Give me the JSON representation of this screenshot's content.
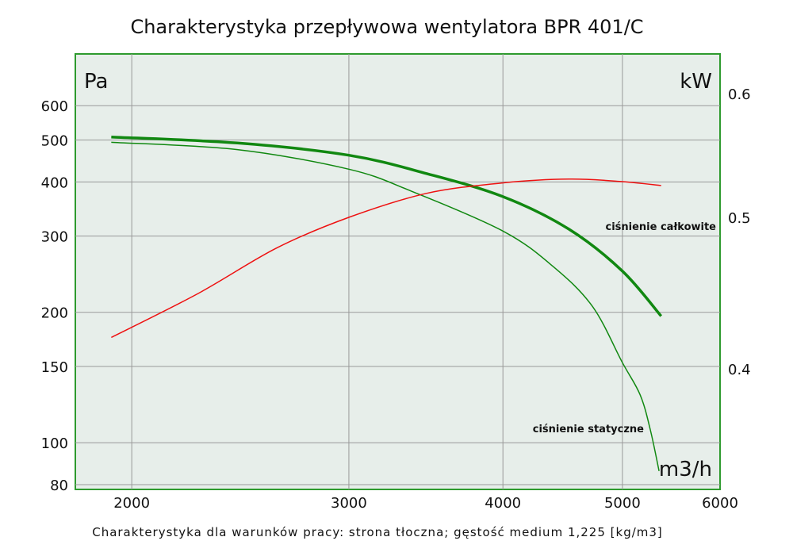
{
  "chart_data": {
    "type": "line",
    "title": "Charakterystyka przepływowa wentylatora BPR 401/C",
    "caption": "Charakterystyka dla warunków pracy: strona tłoczna; gęstość medium 1,225 [kg/m3]",
    "xlabel": "m3/h",
    "ylabel_left": "Pa",
    "ylabel_right": "kW",
    "x_scale": "log",
    "y_scale": "log",
    "y2_scale": "log",
    "xlim": [
      1800,
      6000
    ],
    "ylim": [
      78,
      790
    ],
    "y2lim": [
      0.335,
      0.636
    ],
    "x_ticks": [
      "2000",
      "3000",
      "4000",
      "5000",
      "6000"
    ],
    "y_ticks": [
      "600",
      "500",
      "400",
      "300",
      "200",
      "150",
      "100",
      "80"
    ],
    "y2_ticks": [
      "0.6",
      "0.5",
      "0.4"
    ],
    "grid": true,
    "colors": {
      "background": "#e7eeea",
      "border": "#2e9a2e",
      "grid": "#999999",
      "pressure": "#118811",
      "power": "#ee1111"
    },
    "series": [
      {
        "name": "ciśnienie całkowite",
        "axis": "left",
        "color": "#118811",
        "width": "thick",
        "x": [
          1925,
          2436,
          3000,
          3470,
          4000,
          4526,
          5000,
          5375
        ],
        "y": [
          508,
          492,
          461,
          418,
          370,
          311,
          249,
          196
        ]
      },
      {
        "name": "ciśnienie statyczne",
        "axis": "left",
        "color": "#118811",
        "width": "thin",
        "x": [
          1925,
          2436,
          3000,
          3370,
          4000,
          4394,
          4730,
          5000,
          5168,
          5268,
          5354
        ],
        "y": [
          494,
          475,
          428,
          381,
          308,
          255,
          206,
          153,
          129,
          107,
          86
        ]
      },
      {
        "axis": "right",
        "color": "#ee1111",
        "width": "thin",
        "x": [
          1925,
          2264,
          2622,
          3000,
          3470,
          4000,
          4526,
          5000,
          5375
        ],
        "y": [
          0.419,
          0.447,
          0.478,
          0.5,
          0.518,
          0.526,
          0.529,
          0.527,
          0.524
        ]
      }
    ]
  }
}
